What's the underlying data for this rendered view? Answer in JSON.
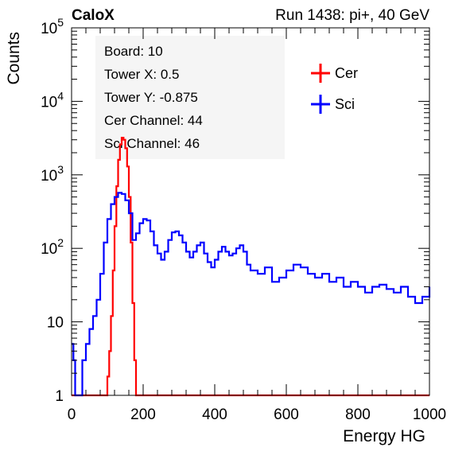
{
  "header": {
    "left": "CaloX",
    "right": "Run 1438: pi+, 40 GeV"
  },
  "info_box": [
    "Board: 10",
    "Tower X: 0.5",
    "Tower Y: -0.875",
    "Cer Channel: 44",
    "Sci Channel: 46"
  ],
  "chart_data": {
    "type": "line",
    "xlabel": "Energy HG",
    "ylabel": "Counts",
    "xlim": [
      0,
      1000
    ],
    "ylim": [
      1,
      100000
    ],
    "yscale": "log",
    "x_ticks": [
      "0",
      "200",
      "400",
      "600",
      "800",
      "1000"
    ],
    "y_ticks": [
      "1",
      "10",
      "10^2",
      "10^3",
      "10^4",
      "10^5"
    ],
    "grid": false,
    "legend_position": "top-right",
    "series": [
      {
        "name": "Cer",
        "color": "#ff0000",
        "x": [
          0,
          90,
          100,
          105,
          110,
          115,
          120,
          125,
          130,
          135,
          140,
          145,
          150,
          155,
          160,
          165,
          170,
          175,
          180,
          190,
          1000
        ],
        "y": [
          1,
          1,
          1.8,
          4,
          12,
          50,
          200,
          700,
          1600,
          2600,
          3200,
          3000,
          2300,
          1300,
          500,
          120,
          18,
          3,
          1,
          1,
          1
        ]
      },
      {
        "name": "Sci",
        "color": "#0000ff",
        "x": [
          0,
          5,
          10,
          20,
          30,
          40,
          50,
          60,
          70,
          80,
          90,
          100,
          110,
          120,
          130,
          140,
          150,
          160,
          170,
          180,
          190,
          200,
          210,
          220,
          230,
          240,
          250,
          260,
          270,
          280,
          290,
          300,
          310,
          320,
          330,
          340,
          350,
          360,
          370,
          380,
          390,
          400,
          410,
          420,
          430,
          440,
          450,
          460,
          470,
          480,
          490,
          500,
          520,
          540,
          560,
          580,
          600,
          620,
          640,
          660,
          680,
          700,
          720,
          740,
          760,
          780,
          800,
          820,
          840,
          860,
          880,
          900,
          920,
          940,
          960,
          980,
          1000
        ],
        "y": [
          5,
          3,
          1,
          1,
          3,
          5,
          8,
          12,
          20,
          45,
          120,
          250,
          400,
          500,
          570,
          550,
          450,
          300,
          130,
          160,
          220,
          250,
          240,
          170,
          110,
          85,
          70,
          90,
          130,
          165,
          170,
          150,
          120,
          90,
          75,
          90,
          110,
          120,
          85,
          65,
          55,
          70,
          90,
          105,
          90,
          80,
          85,
          100,
          110,
          90,
          60,
          50,
          45,
          55,
          35,
          40,
          50,
          60,
          55,
          45,
          40,
          45,
          35,
          40,
          30,
          35,
          30,
          25,
          30,
          32,
          28,
          25,
          30,
          22,
          18,
          22,
          30
        ]
      }
    ]
  }
}
